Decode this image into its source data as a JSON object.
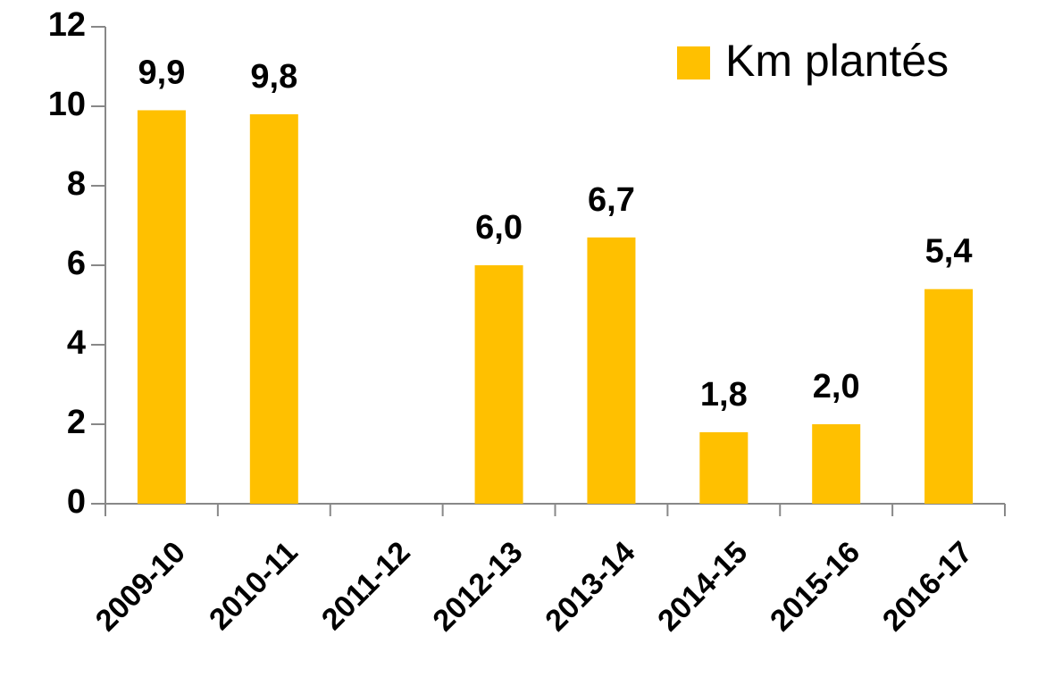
{
  "chart_data": {
    "type": "bar",
    "categories": [
      "2009-10",
      "2010-11",
      "2011-12",
      "2012-13",
      "2013-14",
      "2014-15",
      "2015-16",
      "2016-17"
    ],
    "series": [
      {
        "name": "Km plantés",
        "color": "#ffc000",
        "values": [
          9.9,
          9.8,
          null,
          6.0,
          6.7,
          1.8,
          2.0,
          5.4
        ],
        "value_labels": [
          "9,9",
          "9,8",
          null,
          "6,0",
          "6,7",
          "1,8",
          "2,0",
          "5,4"
        ]
      }
    ],
    "ylim": [
      0,
      12
    ],
    "yticks": [
      0,
      2,
      4,
      6,
      8,
      10,
      12
    ],
    "grid": false,
    "legend": "top-right"
  }
}
